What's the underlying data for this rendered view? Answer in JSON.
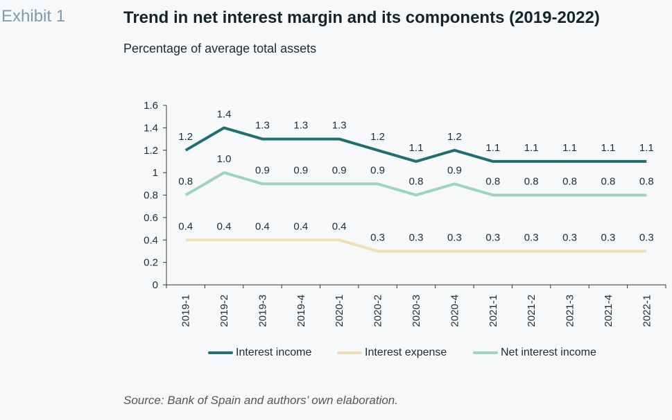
{
  "exhibit_label": "Exhibit 1",
  "title": "Trend in net interest margin and its components (2019-2022)",
  "subtitle": "Percentage of average total assets",
  "source": "Source: Bank of Spain and authors’ own elaboration.",
  "colors": {
    "interest_income": "#1e6f73",
    "interest_expense": "#f0dfb4",
    "net_interest_income": "#9fd3bb",
    "axis": "#333333"
  },
  "chart_data": {
    "type": "line",
    "categories": [
      "2019-1",
      "2019-2",
      "2019-3",
      "2019-4",
      "2020-1",
      "2020-2",
      "2020-3",
      "2020-4",
      "2021-1",
      "2021-2",
      "2021-3",
      "2021-4",
      "2022-1"
    ],
    "ylim": [
      0,
      1.6
    ],
    "yticks": [
      0,
      0.2,
      0.4,
      0.6,
      0.8,
      1,
      1.2,
      1.4,
      1.6
    ],
    "ytick_labels": [
      "0",
      "0.2",
      "0.4",
      "0.6",
      "0.8",
      "1",
      "1.2",
      "1.4",
      "1.6"
    ],
    "grid": false,
    "legend_position": "bottom",
    "series": [
      {
        "key": "interest_income",
        "name": "Interest income",
        "values": [
          1.2,
          1.4,
          1.3,
          1.3,
          1.3,
          1.2,
          1.1,
          1.2,
          1.1,
          1.1,
          1.1,
          1.1,
          1.1
        ],
        "labels": [
          "1.2",
          "1.4",
          "1.3",
          "1.3",
          "1.3",
          "1.2",
          "1.1",
          "1.2",
          "1.1",
          "1.1",
          "1.1",
          "1.1",
          "1.1"
        ]
      },
      {
        "key": "interest_expense",
        "name": "Interest expense",
        "values": [
          0.4,
          0.4,
          0.4,
          0.4,
          0.4,
          0.3,
          0.3,
          0.3,
          0.3,
          0.3,
          0.3,
          0.3,
          0.3
        ],
        "labels": [
          "0.4",
          "0.4",
          "0.4",
          "0.4",
          "0.4",
          "0.3",
          "0.3",
          "0.3",
          "0.3",
          "0.3",
          "0.3",
          "0.3",
          "0.3"
        ]
      },
      {
        "key": "net_interest_income",
        "name": "Net interest income",
        "values": [
          0.8,
          1.0,
          0.9,
          0.9,
          0.9,
          0.9,
          0.8,
          0.9,
          0.8,
          0.8,
          0.8,
          0.8,
          0.8
        ],
        "labels": [
          "0.8",
          "1.0",
          "0.9",
          "0.9",
          "0.9",
          "0.9",
          "0.8",
          "0.9",
          "0.8",
          "0.8",
          "0.8",
          "0.8",
          "0.8"
        ]
      }
    ]
  }
}
